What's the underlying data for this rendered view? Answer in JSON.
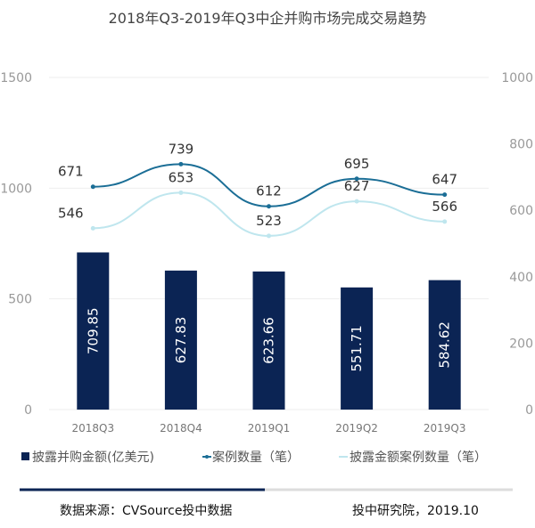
{
  "chart_data": {
    "type": "bar+line",
    "title": "2018年Q3-2019年Q3中企并购市场完成交易趋势",
    "categories": [
      "2018Q3",
      "2018Q4",
      "2019Q1",
      "2019Q2",
      "2019Q3"
    ],
    "left_axis": {
      "range": [
        0,
        1500
      ],
      "ticks": [
        "0",
        "500",
        "1000",
        "1500"
      ]
    },
    "right_axis": {
      "range": [
        0,
        1000
      ],
      "ticks": [
        "0",
        "200",
        "400",
        "600",
        "800",
        "1000"
      ]
    },
    "grid": true,
    "legend_position": "bottom",
    "series": [
      {
        "name": "披露并购金额(亿美元)",
        "type": "bar",
        "axis": "left",
        "color": "#0b2454",
        "values": [
          709.85,
          627.83,
          623.66,
          551.71,
          584.62
        ],
        "labels": [
          "709.85",
          "627.83",
          "623.66",
          "551.71",
          "584.62"
        ]
      },
      {
        "name": "案例数量（笔）",
        "type": "line",
        "axis": "right",
        "color": "#1b6e96",
        "values": [
          671,
          739,
          612,
          695,
          647
        ],
        "labels": [
          "671",
          "739",
          "612",
          "695",
          "647"
        ]
      },
      {
        "name": "披露金额案例数量（笔）",
        "type": "line",
        "axis": "right",
        "color": "#bfe6ee",
        "values": [
          546,
          653,
          523,
          627,
          566
        ],
        "labels": [
          "546",
          "653",
          "523",
          "627",
          "566"
        ]
      }
    ]
  },
  "footer": {
    "source": "数据来源：CVSource投中数据",
    "credit": "投中研究院，2019.10"
  }
}
